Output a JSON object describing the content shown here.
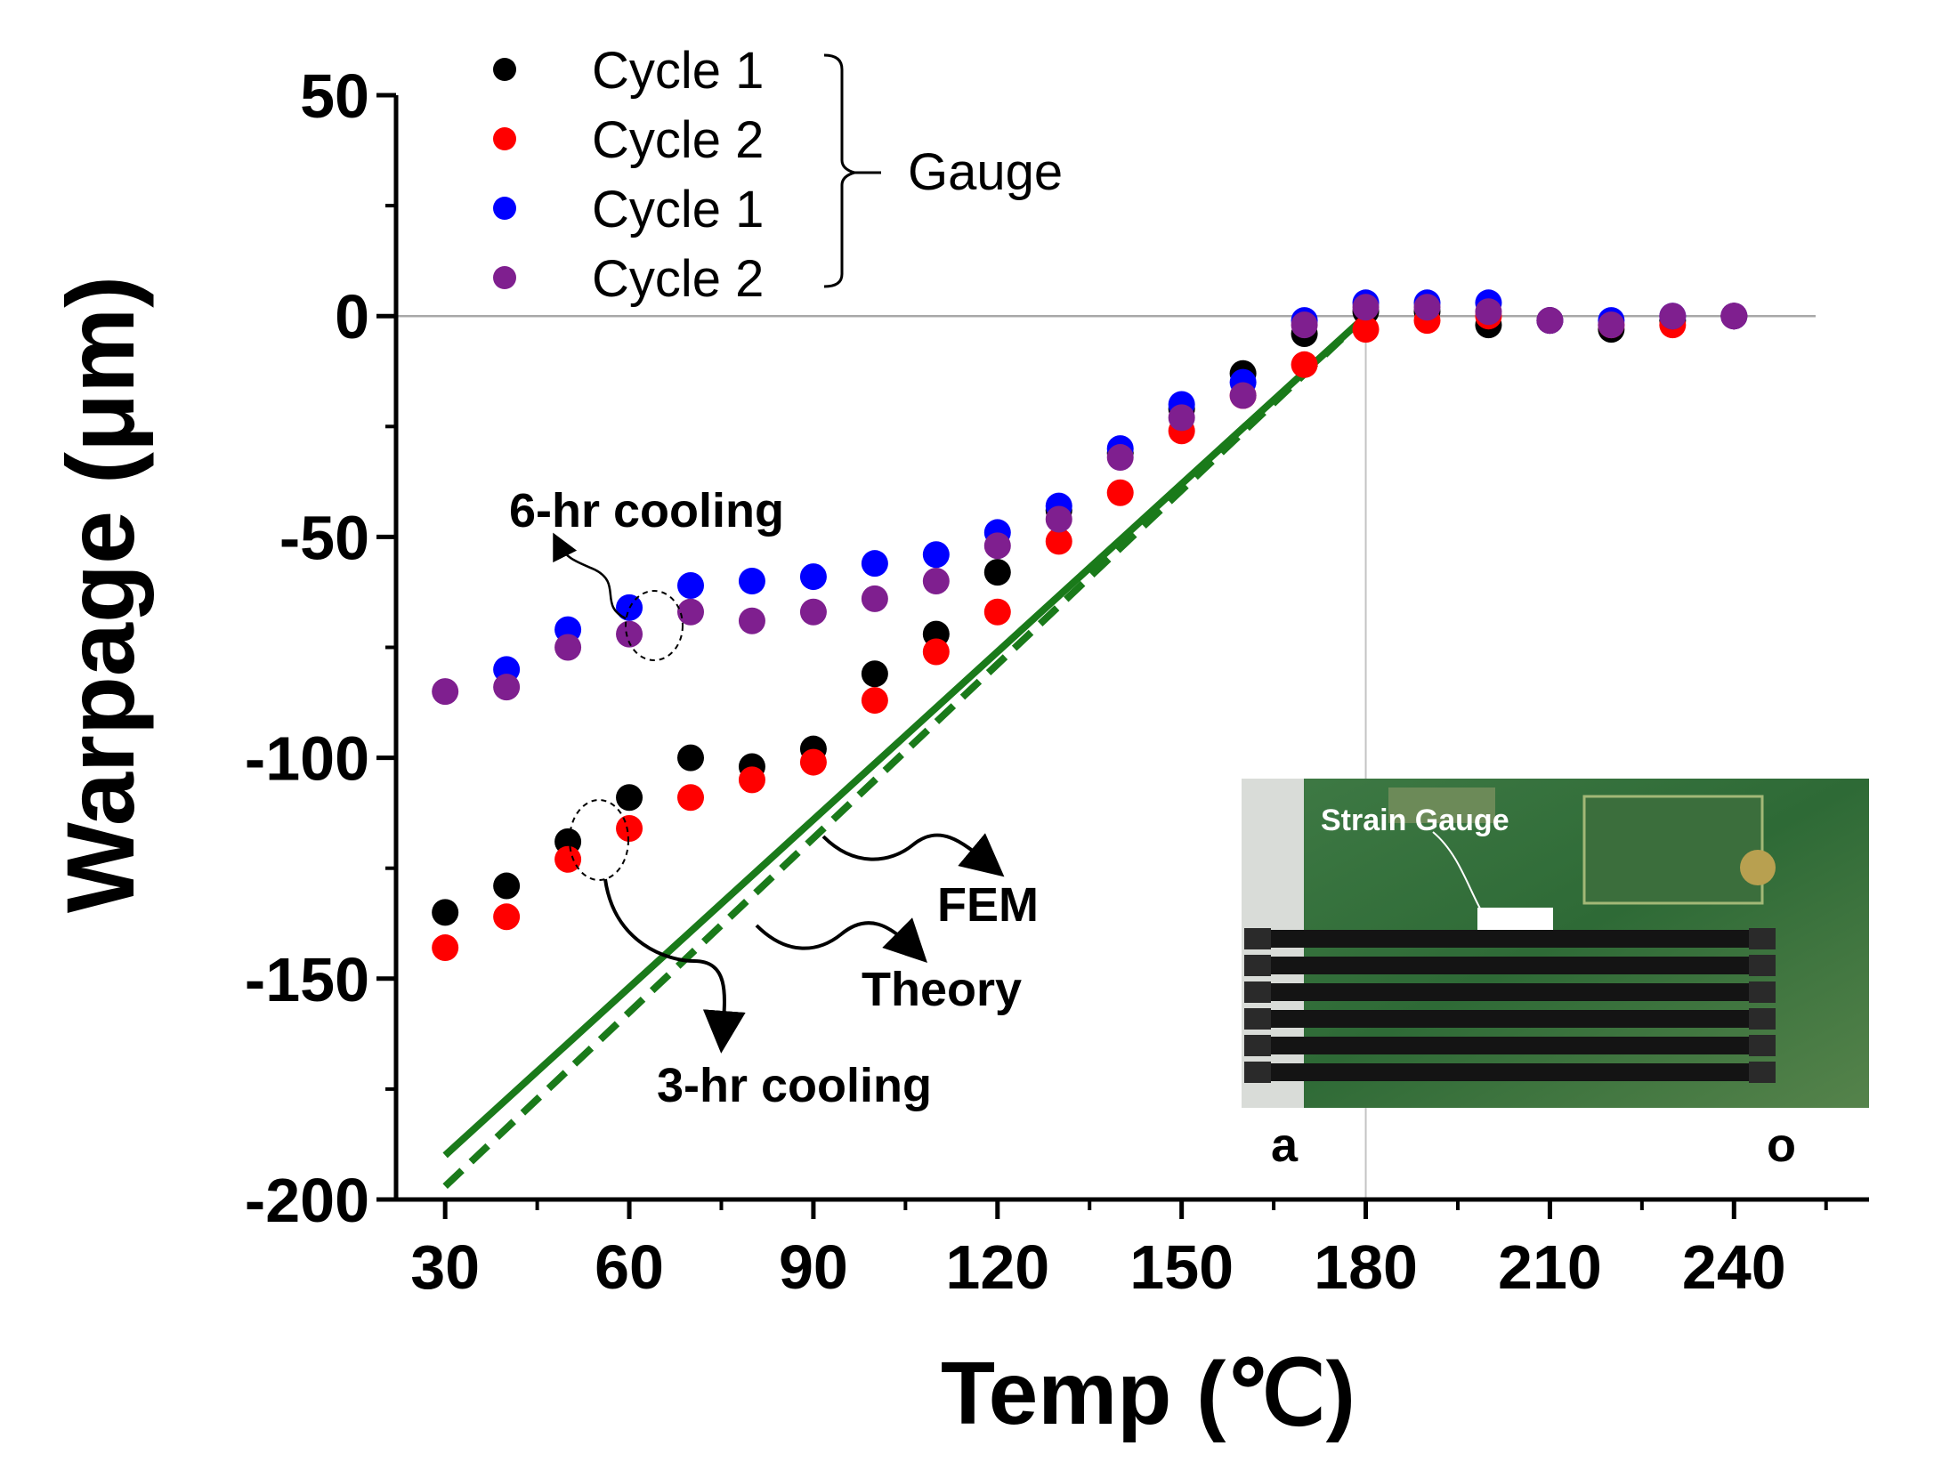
{
  "chart_data": {
    "type": "scatter",
    "xlabel": "Temp (℃)",
    "ylabel": "Warpage (μm)",
    "xlim": [
      22,
      262
    ],
    "ylim": [
      -200,
      50
    ],
    "xticks": [
      30,
      60,
      90,
      120,
      150,
      180,
      210,
      240
    ],
    "yticks": [
      50,
      0,
      -50,
      -100,
      -150,
      -200
    ],
    "x": [
      30,
      40,
      50,
      60,
      70,
      80,
      90,
      100,
      110,
      120,
      130,
      140,
      150,
      160,
      170,
      180,
      190,
      200,
      210,
      220,
      230,
      240
    ],
    "series": [
      {
        "name": "Cycle 1",
        "color": "#000000",
        "values": [
          -135,
          -129,
          -119,
          -109,
          -100,
          -102,
          -98,
          -81,
          -72,
          -58,
          -44,
          -31,
          -21,
          -13,
          -4,
          1,
          1,
          -2,
          -1,
          -3,
          -1,
          0
        ]
      },
      {
        "name": "Cycle 2",
        "color": "#ff0000",
        "values": [
          -143,
          -136,
          -123,
          -116,
          -109,
          -105,
          -101,
          -87,
          -76,
          -67,
          -51,
          -40,
          -26,
          -18,
          -11,
          -3,
          -1,
          0,
          -1,
          -2,
          -2,
          0
        ]
      },
      {
        "name": "Cycle 1",
        "color": "#0000ff",
        "values": [
          null,
          -80,
          -71,
          -66,
          -61,
          -60,
          -59,
          -56,
          -54,
          -49,
          -43,
          -30,
          -20,
          -15,
          -1,
          3,
          3,
          3,
          -1,
          -1,
          0,
          0
        ]
      },
      {
        "name": "Cycle 2",
        "color": "#7f1f8f",
        "values": [
          -85,
          -84,
          -75,
          -72,
          -67,
          -69,
          -67,
          -64,
          -60,
          -52,
          -46,
          -32,
          -23,
          -18,
          -2,
          2,
          2,
          1,
          -1,
          -2,
          0,
          0
        ]
      }
    ],
    "lines": [
      {
        "name": "FEM",
        "style": "solid",
        "color": "#1a7a1a",
        "x": [
          30,
          180
        ],
        "y": [
          -190,
          0
        ]
      },
      {
        "name": "Theory",
        "style": "dashed",
        "color": "#1a7a1a",
        "x": [
          30,
          180
        ],
        "y": [
          -197,
          0
        ]
      }
    ],
    "reference_lines": {
      "x": 180,
      "y": 0
    },
    "legend": {
      "entries": [
        {
          "label": "Cycle 1",
          "color": "#000000"
        },
        {
          "label": "Cycle 2",
          "color": "#ff0000"
        },
        {
          "label": "Cycle 1",
          "color": "#0000ff"
        },
        {
          "label": "Cycle 2",
          "color": "#7f1f8f"
        }
      ],
      "group_label": "Gauge",
      "placement": "top-left"
    },
    "annotations": {
      "six_hr": "6-hr cooling",
      "three_hr": "3-hr cooling",
      "fem": "FEM",
      "theory": "Theory"
    },
    "inset": {
      "label": "Strain Gauge",
      "left_letter": "a",
      "right_letter": "o"
    }
  }
}
